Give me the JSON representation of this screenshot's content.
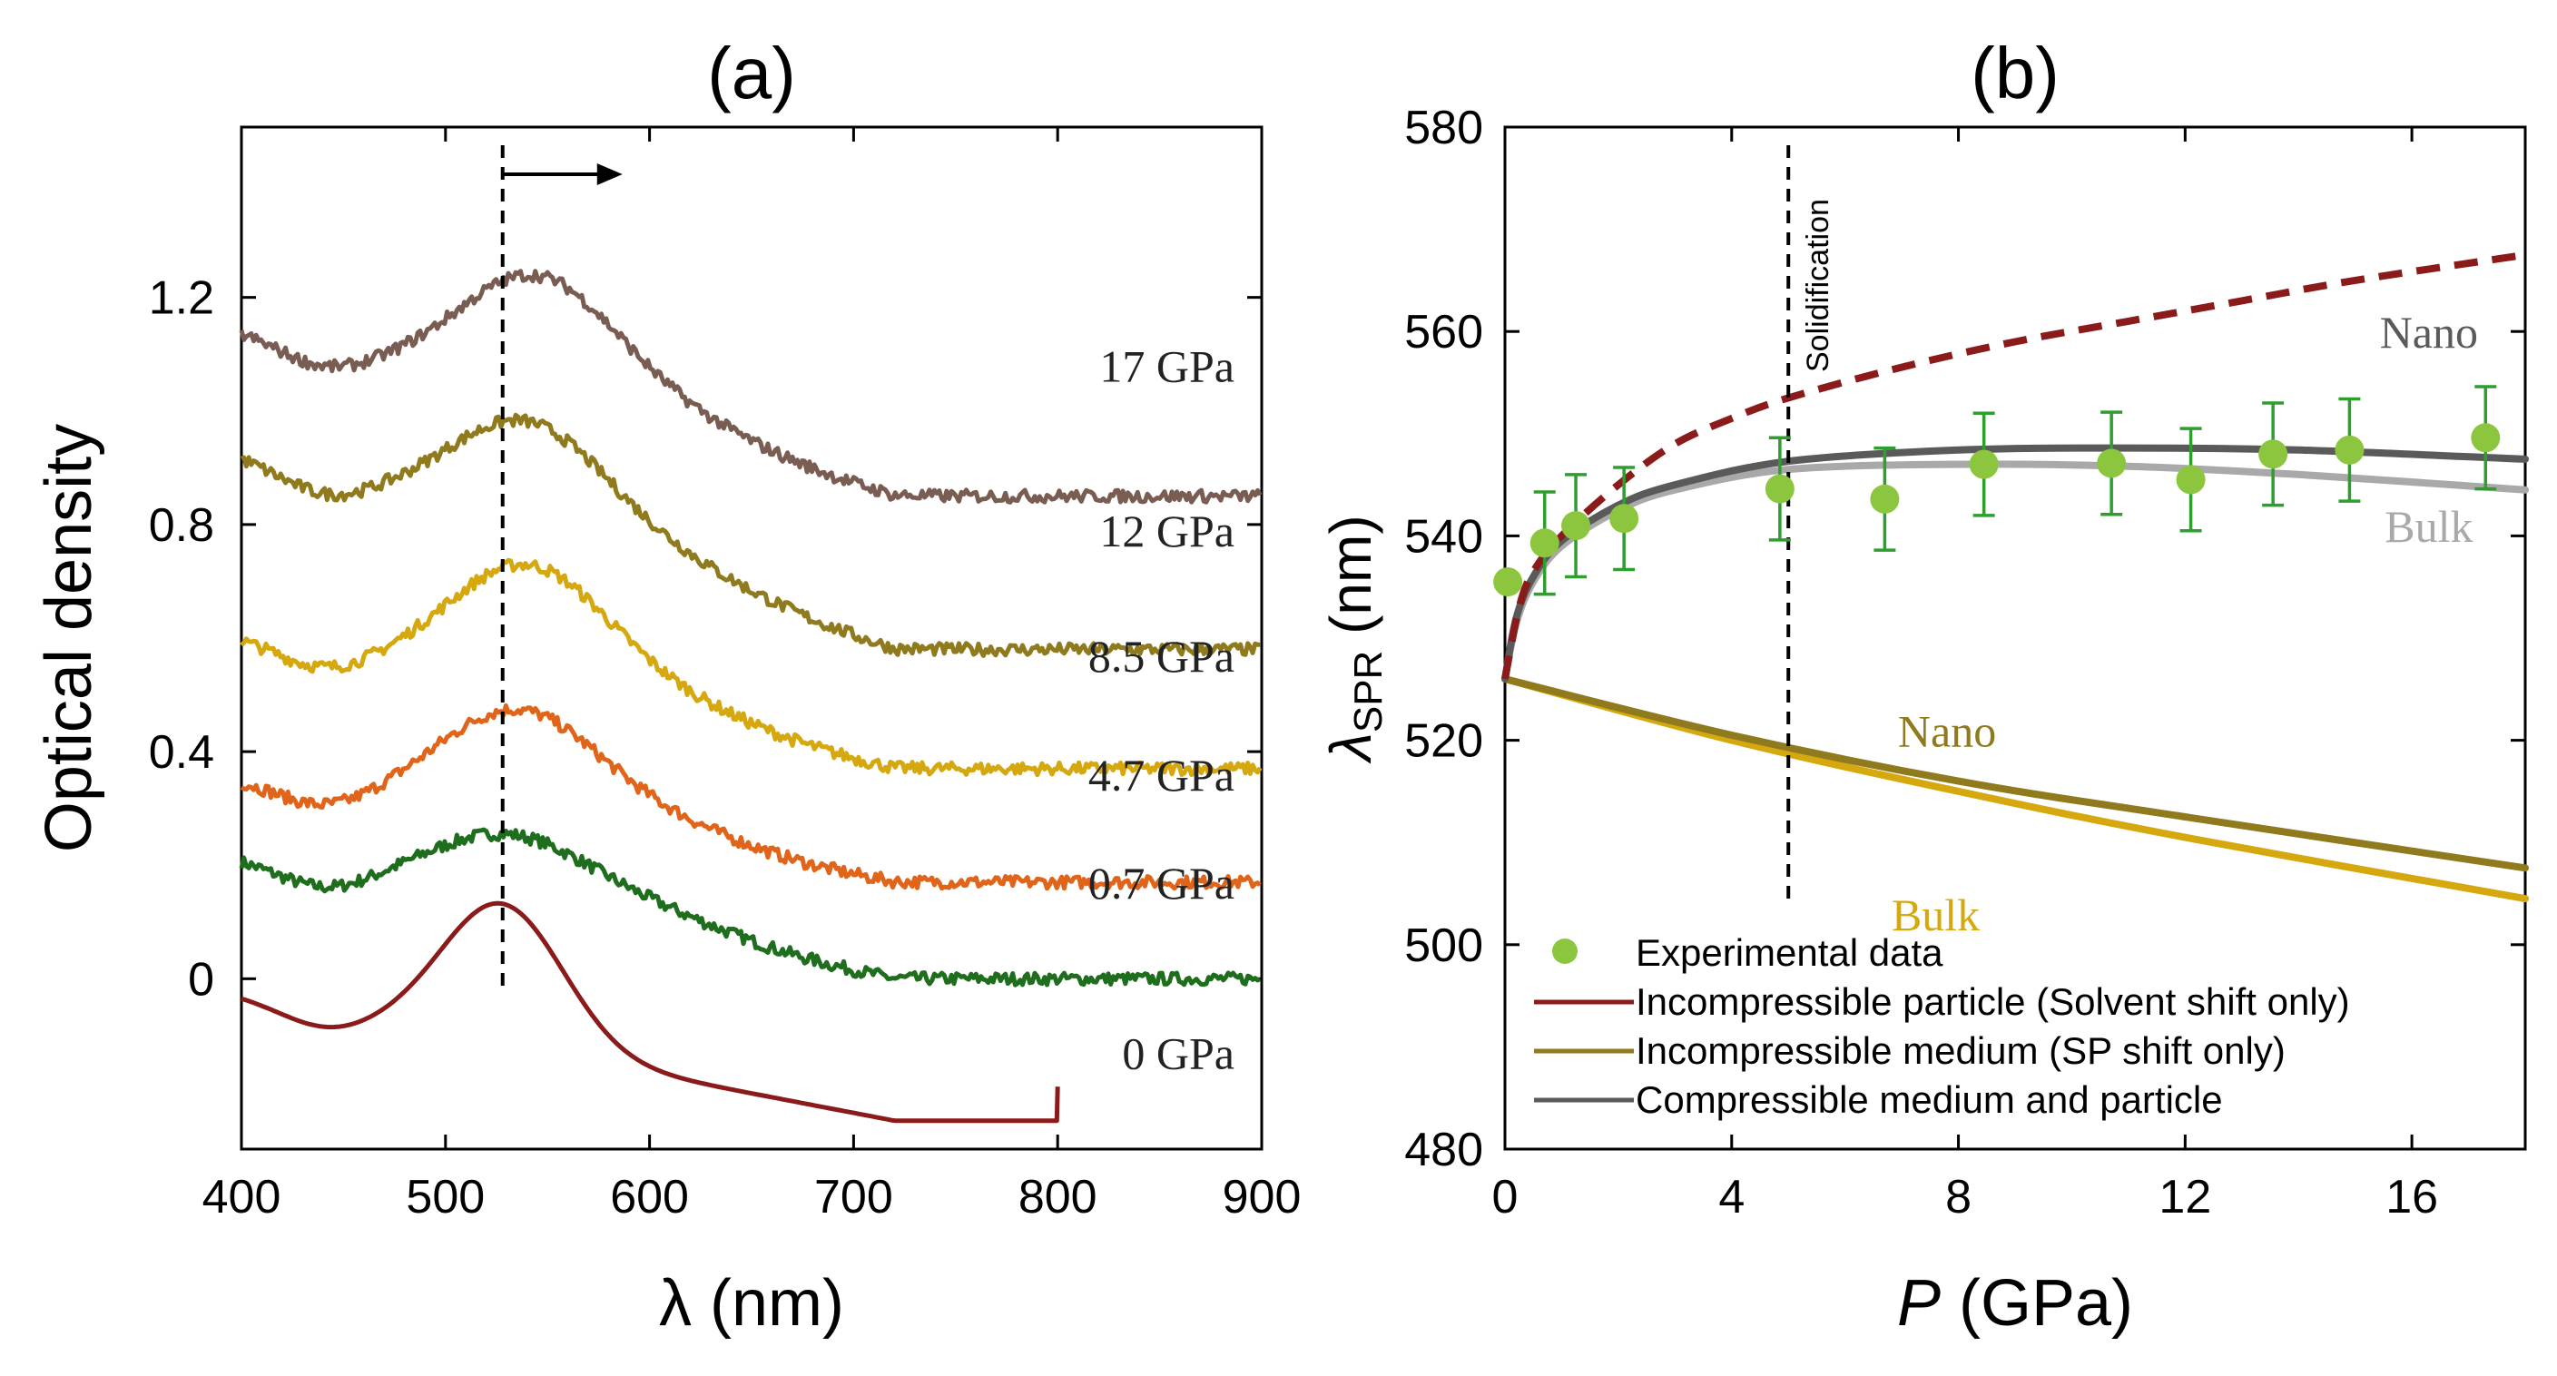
{
  "chart_data": [
    {
      "panel": "(a)",
      "type": "line",
      "title": "(a)",
      "xlabel": "λ (nm)",
      "ylabel": "Optical density",
      "xlim": [
        400,
        900
      ],
      "ylim": [
        -0.3,
        1.5
      ],
      "xticks": [
        400,
        500,
        600,
        700,
        800,
        900
      ],
      "yticks": [
        0,
        0.4,
        0.8,
        1.2
      ],
      "ytick_labels": [
        "0",
        "0.4",
        "0.8",
        "1.2"
      ],
      "reference_line_x": 528,
      "annotation": "arrow pointing to longer wavelength (red shift)",
      "series": [
        {
          "name": "0 GPa",
          "color": "#8b1a1a",
          "x_range": [
            400,
            800
          ],
          "offset": 0.0,
          "peak_x": 528,
          "peak_height": 0.25,
          "start_value": -0.03,
          "end_value": -0.25
        },
        {
          "name": "0.7 GPa",
          "color": "#1e6e1e",
          "x_range": [
            400,
            900
          ],
          "offset": 0.0,
          "peak_x": 530,
          "peak_height": 0.12,
          "start_value": 0.21,
          "end_value": 0.0
        },
        {
          "name": "4.7 GPa",
          "color": "#e0651a",
          "x_range": [
            400,
            900
          ],
          "offset": 0.0,
          "peak_x": 535,
          "peak_height": 0.19,
          "start_value": 0.35,
          "end_value": 0.17
        },
        {
          "name": "8.5 GPa",
          "color": "#d6a80f",
          "x_range": [
            400,
            900
          ],
          "offset": 0.0,
          "peak_x": 540,
          "peak_height": 0.22,
          "start_value": 0.6,
          "end_value": 0.37
        },
        {
          "name": "12 GPa",
          "color": "#8f7a1e",
          "x_range": [
            400,
            900
          ],
          "offset": 0.0,
          "peak_x": 540,
          "peak_height": 0.2,
          "start_value": 0.92,
          "end_value": 0.58
        },
        {
          "name": "17 GPa",
          "color": "#7a5d52",
          "x_range": [
            400,
            900
          ],
          "offset": 0.0,
          "peak_x": 545,
          "peak_height": 0.22,
          "start_value": 1.14,
          "end_value": 0.85
        }
      ]
    },
    {
      "panel": "(b)",
      "type": "line",
      "title": "(b)",
      "xlabel_italic": "P",
      "xlabel_rest": " (GPa)",
      "ylabel_symbol": "λ",
      "ylabel_sub": "SPR",
      "ylabel_rest": " (nm)",
      "xlim": [
        0,
        18
      ],
      "ylim": [
        480,
        580
      ],
      "xticks": [
        0,
        4,
        8,
        12,
        16
      ],
      "yticks": [
        480,
        500,
        520,
        540,
        560,
        580
      ],
      "vertical_line": {
        "x": 5,
        "label": "Solidification",
        "y_range": [
          504,
          580
        ]
      },
      "experimental": {
        "name": "Experimental data",
        "color": "#8cc63f",
        "errorbar_color": "#2e9e2e",
        "points": [
          {
            "x": 0.05,
            "y": 535.5,
            "err": 0
          },
          {
            "x": 0.7,
            "y": 539.3,
            "err": 5
          },
          {
            "x": 1.25,
            "y": 541,
            "err": 5
          },
          {
            "x": 2.1,
            "y": 541.7,
            "err": 5
          },
          {
            "x": 4.85,
            "y": 544.6,
            "err": 5
          },
          {
            "x": 6.7,
            "y": 543.6,
            "err": 5
          },
          {
            "x": 8.45,
            "y": 547,
            "err": 5
          },
          {
            "x": 10.7,
            "y": 547.1,
            "err": 5
          },
          {
            "x": 12.1,
            "y": 545.5,
            "err": 5
          },
          {
            "x": 13.55,
            "y": 548,
            "err": 5
          },
          {
            "x": 14.9,
            "y": 548.4,
            "err": 5
          },
          {
            "x": 17.3,
            "y": 549.6,
            "err": 5
          }
        ]
      },
      "model_curves": [
        {
          "name": "Incompressible particle (Solvent shift only)",
          "color": "#8b1a1a",
          "style": "dashed",
          "points": [
            [
              0,
              526
            ],
            [
              0.25,
              533
            ],
            [
              0.5,
              536.5
            ],
            [
              1,
              540
            ],
            [
              2,
              545
            ],
            [
              3,
              549
            ],
            [
              4,
              551.5
            ],
            [
              5,
              553.5
            ],
            [
              7,
              556.5
            ],
            [
              9,
              559
            ],
            [
              11,
              561
            ],
            [
              13,
              563
            ],
            [
              15,
              565
            ],
            [
              18,
              567.5
            ]
          ]
        },
        {
          "name": "Incompressible medium (SP shift only) — Nano",
          "label": "Nano",
          "color": "#8f7a1e",
          "style": "solid",
          "points": [
            [
              0,
              526
            ],
            [
              4,
              520.5
            ],
            [
              8,
              516
            ],
            [
              12,
              512.5
            ],
            [
              18,
              507.5
            ]
          ]
        },
        {
          "name": "Incompressible medium (SP shift only) — Bulk",
          "label": "Bulk",
          "color": "#d6a80f",
          "style": "solid",
          "points": [
            [
              0,
              526
            ],
            [
              4,
              520
            ],
            [
              8,
              515
            ],
            [
              12,
              510.5
            ],
            [
              18,
              504.5
            ]
          ]
        },
        {
          "name": "Compressible medium and particle — Nano",
          "label": "Nano",
          "color": "#5a5a5a",
          "style": "solid",
          "points": [
            [
              0,
              526
            ],
            [
              0.2,
              532
            ],
            [
              0.5,
              536
            ],
            [
              1,
              539.5
            ],
            [
              2,
              543
            ],
            [
              3,
              545
            ],
            [
              5,
              547.3
            ],
            [
              8,
              548.4
            ],
            [
              11,
              548.6
            ],
            [
              14,
              548.4
            ],
            [
              18,
              547.5
            ]
          ]
        },
        {
          "name": "Compressible medium and particle — Bulk",
          "label": "Bulk",
          "color": "#a9a9a9",
          "style": "solid",
          "points": [
            [
              0,
              526
            ],
            [
              0.2,
              531.5
            ],
            [
              0.5,
              535.5
            ],
            [
              1,
              539
            ],
            [
              2,
              542.5
            ],
            [
              3,
              544.5
            ],
            [
              5,
              546.5
            ],
            [
              8,
              547
            ],
            [
              11,
              546.8
            ],
            [
              14,
              546
            ],
            [
              18,
              544.5
            ]
          ]
        }
      ],
      "legend": [
        {
          "label": "Experimental data",
          "kind": "marker",
          "color": "#8cc63f"
        },
        {
          "label": "Incompressible particle (Solvent shift only)",
          "kind": "line",
          "color": "#8b1a1a"
        },
        {
          "label": "Incompressible medium (SP shift only)",
          "kind": "line",
          "color": "#8f7a1e"
        },
        {
          "label": "Compressible medium and particle",
          "kind": "line",
          "color": "#5a5a5a"
        }
      ],
      "legend_position": "bottom-left"
    }
  ]
}
